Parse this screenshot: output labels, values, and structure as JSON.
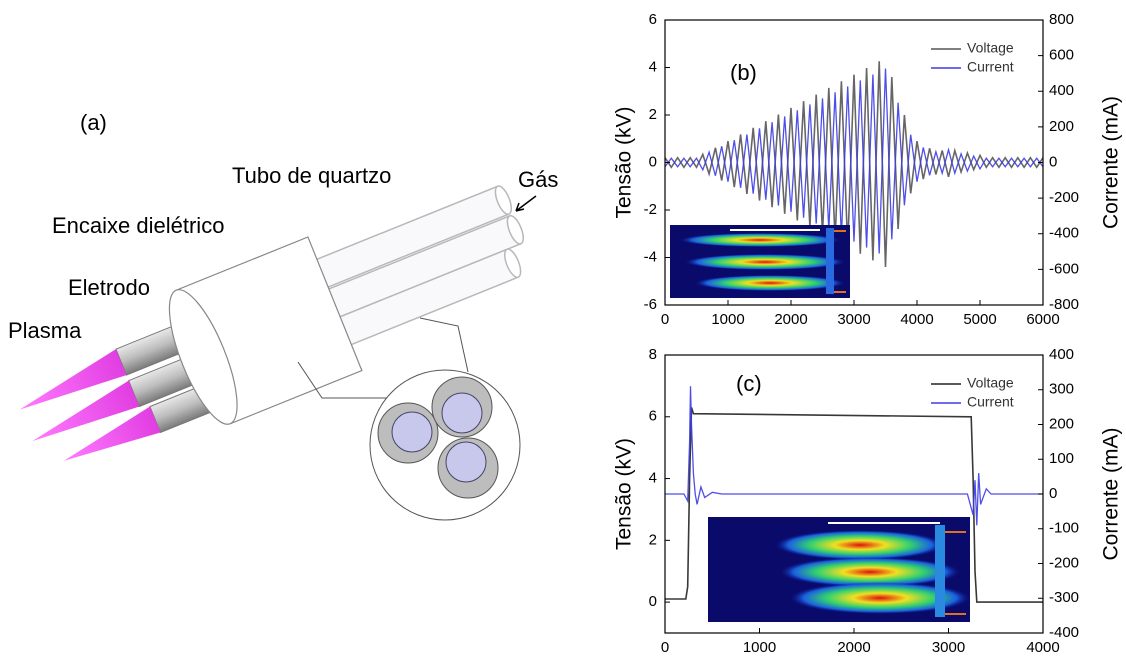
{
  "figure_a": {
    "panel": "(a)",
    "labels": [
      "Tubo de quartzo",
      "Gás",
      "Encaixe dielétrico",
      "Eletrodo",
      "Plasma"
    ]
  },
  "chart_data": [
    {
      "type": "line",
      "annotation": "(b)",
      "y_label": "Tensão (kV)",
      "y2_label": "Corrente (mA)",
      "xlim": [
        0,
        6000
      ],
      "xticks": [
        0,
        1000,
        2000,
        3000,
        4000,
        5000,
        6000
      ],
      "ylim": [
        -6,
        6
      ],
      "yticks": [
        -6,
        -4,
        -2,
        0,
        2,
        4,
        6
      ],
      "y2lim": [
        -800,
        800
      ],
      "y2ticks": [
        -800,
        -600,
        -400,
        -200,
        0,
        200,
        400,
        600,
        800
      ],
      "legend": "upper right",
      "series": [
        {
          "name": "Voltage",
          "color": "#555555",
          "x": [
            0,
            100,
            200,
            300,
            400,
            500,
            600,
            700,
            800,
            900,
            1000,
            1100,
            1200,
            1300,
            1400,
            1500,
            1600,
            1700,
            1800,
            1900,
            2000,
            2100,
            2200,
            2300,
            2400,
            2500,
            2600,
            2700,
            2800,
            2900,
            3000,
            3100,
            3200,
            3300,
            3400,
            3500,
            3600,
            3700,
            3800,
            3900,
            4000,
            4100,
            4200,
            4300,
            4400,
            4500,
            4600,
            4700,
            4800,
            4900,
            5000,
            5100,
            5200,
            5300,
            5400,
            5500,
            5600,
            5700,
            5800,
            5900,
            6000
          ],
          "values": [
            0.2,
            -0.2,
            0.2,
            -0.2,
            0.2,
            -0.2,
            0.34,
            -0.48,
            0.62,
            -0.76,
            0.9,
            -1.04,
            1.18,
            -1.32,
            1.46,
            -1.6,
            1.74,
            -1.88,
            2.02,
            -2.16,
            2.3,
            -2.44,
            2.58,
            -2.72,
            2.86,
            -3.0,
            3.14,
            -3.28,
            3.42,
            -3.56,
            3.7,
            -3.84,
            3.98,
            -4.12,
            4.26,
            -4.4,
            3.6,
            -2.8,
            2.0,
            -1.3,
            0.9,
            -0.7,
            0.6,
            -0.5,
            0.5,
            -0.6,
            0.5,
            -0.4,
            0.4,
            -0.3,
            0.3,
            -0.2,
            0.2,
            -0.2,
            0.2,
            -0.2,
            0.2,
            -0.2,
            0.2,
            -0.2,
            0.2
          ]
        },
        {
          "name": "Current",
          "color": "#3b3be6",
          "axis": "y2",
          "x": [
            0,
            100,
            200,
            300,
            400,
            500,
            600,
            700,
            800,
            900,
            1000,
            1100,
            1200,
            1300,
            1400,
            1500,
            1600,
            1700,
            1800,
            1900,
            2000,
            2100,
            2200,
            2300,
            2400,
            2500,
            2600,
            2700,
            2800,
            2900,
            3000,
            3100,
            3200,
            3300,
            3400,
            3500,
            3600,
            3700,
            3800,
            3900,
            4000,
            4100,
            4200,
            4300,
            4400,
            4500,
            4600,
            4700,
            4800,
            4900,
            5000,
            5100,
            5200,
            5300,
            5400,
            5500,
            5600,
            5700,
            5800,
            5900,
            6000
          ],
          "values": [
            -24,
            24,
            -24,
            24,
            -24,
            24,
            -41,
            58,
            -74,
            91,
            -108,
            125,
            -142,
            158,
            -175,
            192,
            -209,
            226,
            -242,
            259,
            -276,
            293,
            -310,
            326,
            -343,
            360,
            -377,
            394,
            -410,
            427,
            -444,
            461,
            -478,
            494,
            -511,
            528,
            -432,
            336,
            -240,
            156,
            -108,
            84,
            -72,
            60,
            -60,
            72,
            -60,
            48,
            -48,
            36,
            -36,
            24,
            -24,
            24,
            -24,
            24,
            -24,
            24,
            -24,
            24,
            -24
          ]
        }
      ]
    },
    {
      "type": "line",
      "annotation": "(c)",
      "y_label": "Tensão (kV)",
      "y2_label": "Corrente (mA)",
      "xlim": [
        0,
        4000
      ],
      "xticks": [
        0,
        1000,
        2000,
        3000,
        4000
      ],
      "ylim": [
        -1,
        8
      ],
      "yticks": [
        0,
        2,
        4,
        6,
        8
      ],
      "y2lim": [
        -400,
        400
      ],
      "y2ticks": [
        -400,
        -300,
        -200,
        -100,
        0,
        100,
        200,
        300,
        400
      ],
      "legend": "upper right",
      "series": [
        {
          "name": "Voltage",
          "color": "#222222",
          "x": [
            0,
            220,
            240,
            260,
            280,
            300,
            3240,
            3260,
            3280,
            3300,
            4000
          ],
          "values": [
            0.1,
            0.1,
            0.5,
            4,
            6.3,
            6.1,
            6.0,
            4,
            1,
            0,
            0
          ]
        },
        {
          "name": "Current",
          "color": "#3b3be6",
          "axis": "y2",
          "x": [
            0,
            200,
            240,
            260,
            270,
            280,
            300,
            320,
            340,
            380,
            420,
            500,
            600,
            3200,
            3260,
            3280,
            3300,
            3320,
            3340,
            3400,
            3450,
            4000
          ],
          "values": [
            0,
            0,
            -20,
            150,
            310,
            200,
            60,
            0,
            -30,
            20,
            -10,
            5,
            0,
            0,
            -60,
            40,
            -90,
            60,
            -30,
            15,
            0,
            0
          ]
        }
      ]
    }
  ]
}
